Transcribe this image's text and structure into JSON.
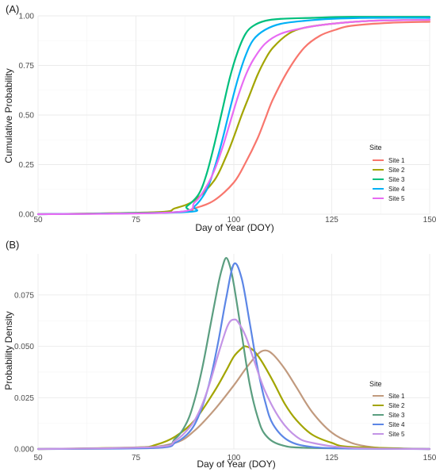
{
  "chart_data": [
    {
      "type": "line",
      "panel_label": "(A)",
      "xlabel": "Day of Year (DOY)",
      "ylabel": "Cumulative Probability",
      "xlim": [
        50,
        150
      ],
      "ylim": [
        0,
        1.0
      ],
      "x_ticks": [
        50,
        75,
        100,
        125,
        150
      ],
      "y_ticks": [
        0.0,
        0.25,
        0.5,
        0.75,
        1.0
      ],
      "x_tick_labels": [
        "50",
        "75",
        "100",
        "125",
        "150"
      ],
      "y_tick_labels": [
        "0.00",
        "0.25",
        "0.50",
        "0.75",
        "1.00"
      ],
      "grid": true,
      "legend": {
        "title": "Site",
        "placement": "right"
      },
      "series": [
        {
          "name": "Site 1",
          "color": "#F8766D",
          "x": [
            50,
            85,
            90,
            95,
            100,
            103,
            106,
            108,
            110,
            114,
            118,
            122,
            126,
            130,
            140,
            150
          ],
          "y": [
            0.0,
            0.01,
            0.03,
            0.07,
            0.16,
            0.26,
            0.38,
            0.48,
            0.58,
            0.73,
            0.84,
            0.9,
            0.93,
            0.95,
            0.965,
            0.97
          ]
        },
        {
          "name": "Site 2",
          "color": "#A3A500",
          "x": [
            50,
            80,
            85,
            90,
            95,
            98,
            100,
            102,
            104,
            106,
            108,
            110,
            114,
            118,
            125,
            135,
            150
          ],
          "y": [
            0.0,
            0.01,
            0.03,
            0.07,
            0.17,
            0.29,
            0.39,
            0.5,
            0.6,
            0.7,
            0.78,
            0.84,
            0.91,
            0.94,
            0.96,
            0.975,
            0.98
          ]
        },
        {
          "name": "Site 3",
          "color": "#00BF7D",
          "x": [
            50,
            85,
            88,
            91,
            93,
            95,
            97,
            99,
            101,
            103,
            105,
            108,
            112,
            120,
            130,
            150
          ],
          "y": [
            0.0,
            0.01,
            0.04,
            0.1,
            0.2,
            0.35,
            0.52,
            0.69,
            0.82,
            0.91,
            0.95,
            0.975,
            0.985,
            0.99,
            0.995,
            0.995
          ]
        },
        {
          "name": "Site 4",
          "color": "#00B0F6",
          "x": [
            50,
            87,
            90,
            93,
            95,
            97,
            99,
            101,
            103,
            105,
            108,
            112,
            118,
            125,
            135,
            150
          ],
          "y": [
            0.0,
            0.01,
            0.04,
            0.12,
            0.23,
            0.37,
            0.53,
            0.68,
            0.8,
            0.88,
            0.93,
            0.96,
            0.975,
            0.985,
            0.99,
            0.99
          ]
        },
        {
          "name": "Site 5",
          "color": "#E76BF3",
          "x": [
            50,
            85,
            90,
            93,
            95,
            97,
            99,
            101,
            103,
            105,
            108,
            112,
            118,
            125,
            135,
            150
          ],
          "y": [
            0.0,
            0.01,
            0.06,
            0.14,
            0.22,
            0.33,
            0.46,
            0.59,
            0.7,
            0.78,
            0.86,
            0.91,
            0.94,
            0.96,
            0.975,
            0.98
          ]
        }
      ]
    },
    {
      "type": "line",
      "panel_label": "(B)",
      "xlabel": "Day of Year (DOY)",
      "ylabel": "Probability Density",
      "xlim": [
        50,
        150
      ],
      "ylim": [
        0,
        0.095
      ],
      "x_ticks": [
        50,
        75,
        100,
        125,
        150
      ],
      "y_ticks": [
        0.0,
        0.025,
        0.05,
        0.075
      ],
      "x_tick_labels": [
        "50",
        "75",
        "100",
        "125",
        "150"
      ],
      "y_tick_labels": [
        "0.000",
        "0.025",
        "0.050",
        "0.075"
      ],
      "grid": true,
      "legend": {
        "title": "Site",
        "placement": "right"
      },
      "series": [
        {
          "name": "Site 1",
          "color": "#C19A7E",
          "x": [
            50,
            75,
            85,
            90,
            95,
            100,
            103,
            106,
            108,
            110,
            113,
            116,
            120,
            125,
            130,
            135,
            140,
            150
          ],
          "y": [
            0.0,
            0.0005,
            0.003,
            0.009,
            0.019,
            0.031,
            0.039,
            0.046,
            0.048,
            0.046,
            0.039,
            0.03,
            0.018,
            0.008,
            0.003,
            0.001,
            0.0003,
            0.0
          ]
        },
        {
          "name": "Site 2",
          "color": "#A3A500",
          "x": [
            50,
            75,
            80,
            85,
            90,
            95,
            98,
            100,
            102,
            103,
            105,
            107,
            110,
            113,
            116,
            120,
            125,
            130,
            150
          ],
          "y": [
            0.0,
            0.0008,
            0.002,
            0.006,
            0.014,
            0.028,
            0.038,
            0.045,
            0.049,
            0.05,
            0.048,
            0.043,
            0.033,
            0.022,
            0.014,
            0.007,
            0.003,
            0.001,
            0.0
          ]
        },
        {
          "name": "Site 3",
          "color": "#5B9E80",
          "x": [
            50,
            80,
            85,
            88,
            90,
            92,
            94,
            96,
            97,
            98,
            99,
            100,
            102,
            104,
            106,
            108,
            112,
            120,
            150
          ],
          "y": [
            0.0,
            0.001,
            0.005,
            0.013,
            0.024,
            0.04,
            0.06,
            0.08,
            0.088,
            0.093,
            0.089,
            0.08,
            0.056,
            0.032,
            0.016,
            0.007,
            0.002,
            0.0005,
            0.0
          ]
        },
        {
          "name": "Site 4",
          "color": "#5C86E6",
          "x": [
            50,
            80,
            85,
            88,
            90,
            92,
            94,
            96,
            98,
            100,
            102,
            104,
            106,
            108,
            110,
            114,
            120,
            130,
            150
          ],
          "y": [
            0.0,
            0.0005,
            0.003,
            0.007,
            0.012,
            0.021,
            0.034,
            0.052,
            0.073,
            0.09,
            0.083,
            0.062,
            0.04,
            0.023,
            0.012,
            0.004,
            0.001,
            0.0002,
            0.0
          ]
        },
        {
          "name": "Site 5",
          "color": "#C394E6",
          "x": [
            50,
            80,
            85,
            88,
            90,
            92,
            94,
            96,
            98,
            99,
            100,
            101,
            103,
            105,
            108,
            112,
            116,
            120,
            130,
            150
          ],
          "y": [
            0.0,
            0.001,
            0.004,
            0.009,
            0.014,
            0.022,
            0.033,
            0.046,
            0.058,
            0.062,
            0.063,
            0.062,
            0.055,
            0.044,
            0.028,
            0.014,
            0.006,
            0.003,
            0.0005,
            0.0
          ]
        }
      ]
    }
  ]
}
